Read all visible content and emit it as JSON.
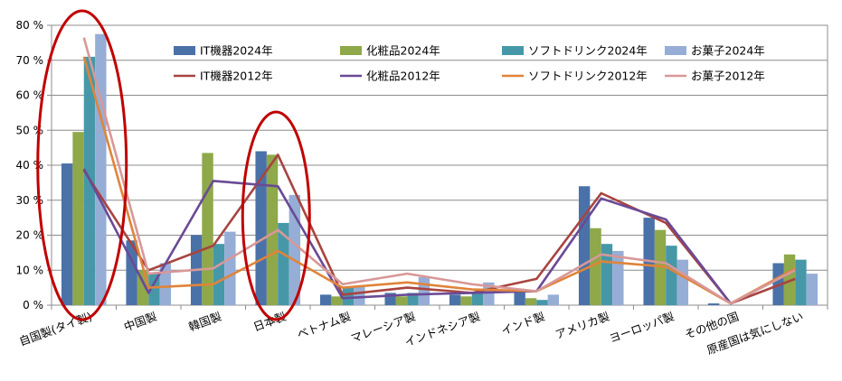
{
  "colors": {
    "it2024": "#4a72a8",
    "cos2024": "#8ea84a",
    "soft2024": "#4698a8",
    "snack2024": "#96aed6",
    "it2012": "#a84440",
    "cos2012": "#6a4a96",
    "soft2012": "#e0843a",
    "snack2012": "#d89898",
    "ellipse": "#c00000"
  },
  "chart_data": {
    "type": "bar",
    "ylim": [
      0,
      80
    ],
    "yticks": [
      "0 %",
      "10 %",
      "20 %",
      "30 %",
      "40 %",
      "50 %",
      "60 %",
      "70 %",
      "80 %"
    ],
    "grid": true,
    "legend_placement": "top",
    "categories": [
      "自国製(タイ製)",
      "中国製",
      "韓国製",
      "日本製",
      "ベトナム製",
      "マレーシア製",
      "インドネシア製",
      "インド製",
      "アメリカ製",
      "ヨーロッパ製",
      "その他の国",
      "原産国は気にしない"
    ],
    "bar_series": [
      {
        "name": "IT機器2024年",
        "color_key": "it2024",
        "values": [
          40.5,
          18.5,
          20,
          44,
          3,
          3.5,
          3,
          4,
          34,
          25,
          0.5,
          12
        ]
      },
      {
        "name": "化粧品2024年",
        "color_key": "cos2024",
        "values": [
          49.5,
          10,
          43.5,
          43,
          2.5,
          2.5,
          2.5,
          2,
          22,
          21.5,
          0,
          14.5
        ]
      },
      {
        "name": "ソフトドリンク2024年",
        "color_key": "soft2024",
        "values": [
          71,
          9,
          17.5,
          23.5,
          5,
          3.5,
          3.5,
          1.5,
          17.5,
          17,
          0,
          13
        ]
      },
      {
        "name": "お菓子2024年",
        "color_key": "snack2024",
        "values": [
          77.5,
          12,
          21,
          31.5,
          5.5,
          8,
          6.5,
          3,
          15.5,
          13,
          0,
          9
        ]
      }
    ],
    "line_series": [
      {
        "name": "IT機器2012年",
        "color_key": "it2012",
        "values": [
          38.5,
          10,
          17,
          43,
          3,
          5,
          3.5,
          7.5,
          32,
          23.5,
          0.5,
          7.5
        ]
      },
      {
        "name": "化粧品2012年",
        "color_key": "cos2012",
        "values": [
          39,
          3.5,
          35.5,
          34,
          2,
          3,
          3.5,
          4,
          30.5,
          24.5,
          0.5,
          10
        ]
      },
      {
        "name": "ソフトドリンク2012年",
        "color_key": "soft2012",
        "values": [
          71,
          5,
          6,
          15.5,
          5,
          6.5,
          4.5,
          4,
          12.5,
          11,
          0.5,
          10.5
        ]
      },
      {
        "name": "お菓子2012年",
        "color_key": "snack2012",
        "values": [
          76.5,
          9,
          10.5,
          21.5,
          6,
          9,
          6,
          4,
          14.5,
          12,
          0.5,
          10
        ]
      }
    ],
    "annotations": [
      {
        "type": "ellipse",
        "category": "自国製(タイ製)"
      },
      {
        "type": "ellipse",
        "category": "日本製"
      }
    ]
  }
}
